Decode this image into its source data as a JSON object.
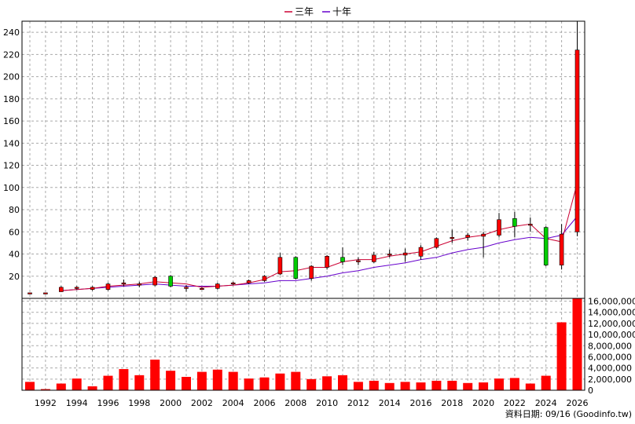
{
  "chart_data": {
    "type": "candlestick",
    "legend": [
      {
        "name": "三年",
        "color": "#cc0033"
      },
      {
        "name": "十年",
        "color": "#6600cc"
      }
    ],
    "legend_position": "top-center",
    "x_ticks": [
      "1992",
      "1994",
      "1996",
      "1998",
      "2000",
      "2002",
      "2004",
      "2006",
      "2008",
      "2010",
      "2012",
      "2014",
      "2016",
      "2018",
      "2020",
      "2022",
      "2024",
      "2026"
    ],
    "price_axis": {
      "position": "left",
      "ylim": [
        0,
        250
      ],
      "ticks": [
        20,
        40,
        60,
        80,
        100,
        120,
        140,
        160,
        180,
        200,
        220,
        240
      ]
    },
    "volume_axis": {
      "position": "right",
      "ylim": [
        0,
        16500000
      ],
      "ticks": [
        "0",
        "2,000,000",
        "4,000,000",
        "6,000,000",
        "8,000,000",
        "10,000,000",
        "12,000,000",
        "14,000,000",
        "16,000,000"
      ]
    },
    "up_color": "#ff0000",
    "down_color": "#00cc00",
    "grid": true,
    "candles": [
      {
        "year": 1991,
        "open": 5,
        "high": 5,
        "low": 4,
        "close": 5
      },
      {
        "year": 1992,
        "open": 5,
        "high": 5,
        "low": 5,
        "close": 5
      },
      {
        "year": 1993,
        "open": 6,
        "high": 11,
        "low": 6,
        "close": 10
      },
      {
        "year": 1994,
        "open": 9,
        "high": 11,
        "low": 8,
        "close": 10
      },
      {
        "year": 1995,
        "open": 8,
        "high": 11,
        "low": 7,
        "close": 10
      },
      {
        "year": 1996,
        "open": 8,
        "high": 14,
        "low": 7,
        "close": 13
      },
      {
        "year": 1997,
        "open": 13,
        "high": 17,
        "low": 11,
        "close": 14
      },
      {
        "year": 1998,
        "open": 12,
        "high": 15,
        "low": 10,
        "close": 13
      },
      {
        "year": 1999,
        "open": 12,
        "high": 20,
        "low": 11,
        "close": 19
      },
      {
        "year": 2000,
        "open": 20,
        "high": 21,
        "low": 10,
        "close": 11
      },
      {
        "year": 2001,
        "open": 10,
        "high": 12,
        "low": 6,
        "close": 10
      },
      {
        "year": 2002,
        "open": 9,
        "high": 10,
        "low": 8,
        "close": 9
      },
      {
        "year": 2003,
        "open": 9,
        "high": 14,
        "low": 8,
        "close": 13
      },
      {
        "year": 2004,
        "open": 13,
        "high": 15,
        "low": 12,
        "close": 14
      },
      {
        "year": 2005,
        "open": 14,
        "high": 17,
        "low": 13,
        "close": 16
      },
      {
        "year": 2006,
        "open": 16,
        "high": 21,
        "low": 15,
        "close": 20
      },
      {
        "year": 2007,
        "open": 22,
        "high": 41,
        "low": 21,
        "close": 37
      },
      {
        "year": 2008,
        "open": 37,
        "high": 38,
        "low": 17,
        "close": 18
      },
      {
        "year": 2009,
        "open": 18,
        "high": 30,
        "low": 16,
        "close": 29
      },
      {
        "year": 2010,
        "open": 28,
        "high": 39,
        "low": 26,
        "close": 38
      },
      {
        "year": 2011,
        "open": 37,
        "high": 46,
        "low": 30,
        "close": 33
      },
      {
        "year": 2012,
        "open": 33,
        "high": 37,
        "low": 30,
        "close": 34
      },
      {
        "year": 2013,
        "open": 33,
        "high": 42,
        "low": 32,
        "close": 39
      },
      {
        "year": 2014,
        "open": 39,
        "high": 44,
        "low": 37,
        "close": 40
      },
      {
        "year": 2015,
        "open": 39,
        "high": 45,
        "low": 33,
        "close": 41
      },
      {
        "year": 2016,
        "open": 38,
        "high": 48,
        "low": 35,
        "close": 46
      },
      {
        "year": 2017,
        "open": 46,
        "high": 55,
        "low": 45,
        "close": 54
      },
      {
        "year": 2018,
        "open": 54,
        "high": 62,
        "low": 50,
        "close": 55
      },
      {
        "year": 2019,
        "open": 55,
        "high": 59,
        "low": 52,
        "close": 57
      },
      {
        "year": 2020,
        "open": 56,
        "high": 60,
        "low": 37,
        "close": 58
      },
      {
        "year": 2021,
        "open": 57,
        "high": 77,
        "low": 55,
        "close": 71
      },
      {
        "year": 2022,
        "open": 72,
        "high": 78,
        "low": 55,
        "close": 65
      },
      {
        "year": 2023,
        "open": 66,
        "high": 73,
        "low": 60,
        "close": 67
      },
      {
        "year": 2024,
        "open": 64,
        "high": 65,
        "low": 29,
        "close": 30
      },
      {
        "year": 2025,
        "open": 30,
        "high": 67,
        "low": 26,
        "close": 58
      },
      {
        "year": 2026,
        "open": 60,
        "high": 250,
        "low": 56,
        "close": 224
      }
    ],
    "ma_3yr": [
      {
        "year": 1993,
        "value": 7
      },
      {
        "year": 1994,
        "value": 8
      },
      {
        "year": 1995,
        "value": 9
      },
      {
        "year": 1996,
        "value": 11
      },
      {
        "year": 1997,
        "value": 12
      },
      {
        "year": 1998,
        "value": 13
      },
      {
        "year": 1999,
        "value": 15
      },
      {
        "year": 2000,
        "value": 14
      },
      {
        "year": 2001,
        "value": 13
      },
      {
        "year": 2002,
        "value": 10
      },
      {
        "year": 2003,
        "value": 11
      },
      {
        "year": 2004,
        "value": 12
      },
      {
        "year": 2005,
        "value": 14
      },
      {
        "year": 2006,
        "value": 17
      },
      {
        "year": 2007,
        "value": 24
      },
      {
        "year": 2008,
        "value": 25
      },
      {
        "year": 2009,
        "value": 28
      },
      {
        "year": 2010,
        "value": 28
      },
      {
        "year": 2011,
        "value": 33
      },
      {
        "year": 2012,
        "value": 35
      },
      {
        "year": 2013,
        "value": 35
      },
      {
        "year": 2014,
        "value": 38
      },
      {
        "year": 2015,
        "value": 40
      },
      {
        "year": 2016,
        "value": 42
      },
      {
        "year": 2017,
        "value": 47
      },
      {
        "year": 2018,
        "value": 52
      },
      {
        "year": 2019,
        "value": 55
      },
      {
        "year": 2020,
        "value": 57
      },
      {
        "year": 2021,
        "value": 62
      },
      {
        "year": 2022,
        "value": 65
      },
      {
        "year": 2023,
        "value": 67
      },
      {
        "year": 2024,
        "value": 54
      },
      {
        "year": 2025,
        "value": 51
      },
      {
        "year": 2026,
        "value": 104
      }
    ],
    "ma_10yr": [
      {
        "year": 1993,
        "value": 7
      },
      {
        "year": 1994,
        "value": 8
      },
      {
        "year": 1995,
        "value": 9
      },
      {
        "year": 1996,
        "value": 10
      },
      {
        "year": 1997,
        "value": 11
      },
      {
        "year": 1998,
        "value": 12
      },
      {
        "year": 1999,
        "value": 13
      },
      {
        "year": 2000,
        "value": 12
      },
      {
        "year": 2001,
        "value": 11
      },
      {
        "year": 2002,
        "value": 11
      },
      {
        "year": 2003,
        "value": 11
      },
      {
        "year": 2004,
        "value": 12
      },
      {
        "year": 2005,
        "value": 13
      },
      {
        "year": 2006,
        "value": 14
      },
      {
        "year": 2007,
        "value": 16
      },
      {
        "year": 2008,
        "value": 16
      },
      {
        "year": 2009,
        "value": 18
      },
      {
        "year": 2010,
        "value": 20
      },
      {
        "year": 2011,
        "value": 23
      },
      {
        "year": 2012,
        "value": 25
      },
      {
        "year": 2013,
        "value": 28
      },
      {
        "year": 2014,
        "value": 30
      },
      {
        "year": 2015,
        "value": 32
      },
      {
        "year": 2016,
        "value": 35
      },
      {
        "year": 2017,
        "value": 37
      },
      {
        "year": 2018,
        "value": 41
      },
      {
        "year": 2019,
        "value": 44
      },
      {
        "year": 2020,
        "value": 46
      },
      {
        "year": 2021,
        "value": 50
      },
      {
        "year": 2022,
        "value": 53
      },
      {
        "year": 2023,
        "value": 55
      },
      {
        "year": 2024,
        "value": 54
      },
      {
        "year": 2025,
        "value": 57
      },
      {
        "year": 2026,
        "value": 74
      }
    ],
    "volume": [
      {
        "year": 1991,
        "value": 1500000
      },
      {
        "year": 1992,
        "value": 200000
      },
      {
        "year": 1993,
        "value": 1200000
      },
      {
        "year": 1994,
        "value": 2100000
      },
      {
        "year": 1995,
        "value": 700000
      },
      {
        "year": 1996,
        "value": 2600000
      },
      {
        "year": 1997,
        "value": 3800000
      },
      {
        "year": 1998,
        "value": 2700000
      },
      {
        "year": 1999,
        "value": 5500000
      },
      {
        "year": 2000,
        "value": 3500000
      },
      {
        "year": 2001,
        "value": 2400000
      },
      {
        "year": 2002,
        "value": 3300000
      },
      {
        "year": 2003,
        "value": 3700000
      },
      {
        "year": 2004,
        "value": 3300000
      },
      {
        "year": 2005,
        "value": 2100000
      },
      {
        "year": 2006,
        "value": 2300000
      },
      {
        "year": 2007,
        "value": 3000000
      },
      {
        "year": 2008,
        "value": 3300000
      },
      {
        "year": 2009,
        "value": 2000000
      },
      {
        "year": 2010,
        "value": 2500000
      },
      {
        "year": 2011,
        "value": 2700000
      },
      {
        "year": 2012,
        "value": 1500000
      },
      {
        "year": 2013,
        "value": 1700000
      },
      {
        "year": 2014,
        "value": 1300000
      },
      {
        "year": 2015,
        "value": 1500000
      },
      {
        "year": 2016,
        "value": 1400000
      },
      {
        "year": 2017,
        "value": 1700000
      },
      {
        "year": 2018,
        "value": 1700000
      },
      {
        "year": 2019,
        "value": 1300000
      },
      {
        "year": 2020,
        "value": 1400000
      },
      {
        "year": 2021,
        "value": 2100000
      },
      {
        "year": 2022,
        "value": 2200000
      },
      {
        "year": 2023,
        "value": 1200000
      },
      {
        "year": 2024,
        "value": 2600000
      },
      {
        "year": 2025,
        "value": 12200000
      },
      {
        "year": 2026,
        "value": 16500000
      }
    ],
    "footer_note": "資料日期: 09/16  (Goodinfo.tw)"
  }
}
